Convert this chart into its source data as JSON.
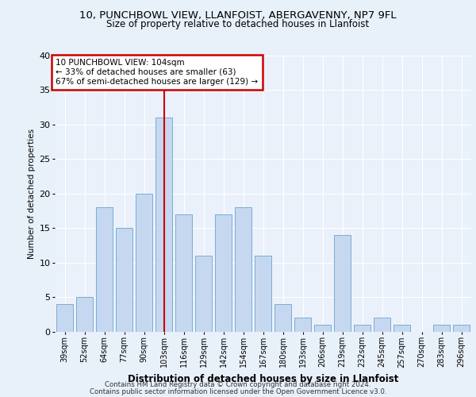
{
  "title1": "10, PUNCHBOWL VIEW, LLANFOIST, ABERGAVENNY, NP7 9FL",
  "title2": "Size of property relative to detached houses in Llanfoist",
  "xlabel": "Distribution of detached houses by size in Llanfoist",
  "ylabel": "Number of detached properties",
  "categories": [
    "39sqm",
    "52sqm",
    "64sqm",
    "77sqm",
    "90sqm",
    "103sqm",
    "116sqm",
    "129sqm",
    "142sqm",
    "154sqm",
    "167sqm",
    "180sqm",
    "193sqm",
    "206sqm",
    "219sqm",
    "232sqm",
    "245sqm",
    "257sqm",
    "270sqm",
    "283sqm",
    "296sqm"
  ],
  "values": [
    4,
    5,
    18,
    15,
    20,
    31,
    17,
    11,
    17,
    18,
    11,
    4,
    2,
    1,
    14,
    1,
    2,
    1,
    0,
    1,
    1
  ],
  "bar_color": "#c5d8f0",
  "bar_edge_color": "#7bacd4",
  "highlight_index": 5,
  "highlight_line_color": "#cc0000",
  "annotation_line1": "10 PUNCHBOWL VIEW: 104sqm",
  "annotation_line2": "← 33% of detached houses are smaller (63)",
  "annotation_line3": "67% of semi-detached houses are larger (129) →",
  "annotation_box_color": "#cc0000",
  "ylim": [
    0,
    40
  ],
  "yticks": [
    0,
    5,
    10,
    15,
    20,
    25,
    30,
    35,
    40
  ],
  "footer1": "Contains HM Land Registry data © Crown copyright and database right 2024.",
  "footer2": "Contains public sector information licensed under the Open Government Licence v3.0.",
  "background_color": "#e8f0fa",
  "plot_bg_color": "#eaf1fb"
}
